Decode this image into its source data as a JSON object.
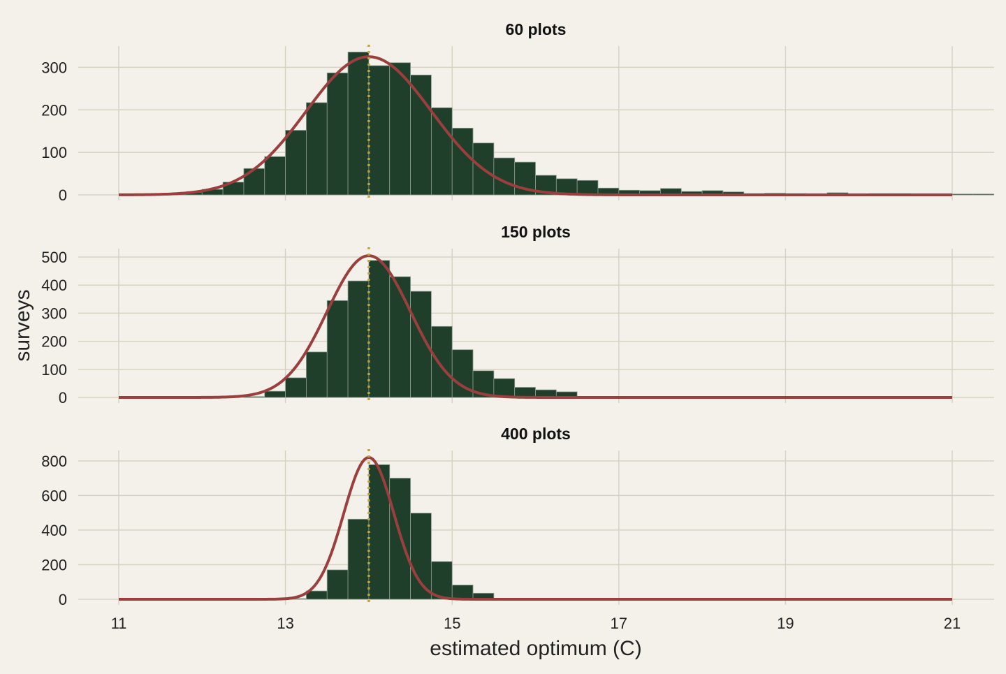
{
  "chart_data": {
    "type": "bar",
    "xlabel": "estimated optimum (C)",
    "ylabel": "surveys",
    "xlim": [
      10.5,
      21.5
    ],
    "xticks": [
      11,
      13,
      15,
      17,
      19,
      21
    ],
    "grid": true,
    "true_value_line": 14,
    "bin_width": 0.25,
    "colors": {
      "background": "#f3f1ea",
      "bars": "#1f3f2a",
      "bar_edge": "#8c9c8f",
      "curve": "#9b3e3e",
      "reference_line": "#c2a33c",
      "grid": "#d6d3c4",
      "text": "#222222"
    },
    "panels": [
      {
        "title": "60 plots",
        "ylim": [
          0,
          350
        ],
        "yticks": [
          0,
          100,
          200,
          300
        ],
        "bins": [
          {
            "x": 11.5,
            "count": 3
          },
          {
            "x": 11.75,
            "count": 6
          },
          {
            "x": 12.0,
            "count": 13
          },
          {
            "x": 12.25,
            "count": 30
          },
          {
            "x": 12.5,
            "count": 62
          },
          {
            "x": 12.75,
            "count": 90
          },
          {
            "x": 13.0,
            "count": 152
          },
          {
            "x": 13.25,
            "count": 217
          },
          {
            "x": 13.5,
            "count": 287
          },
          {
            "x": 13.75,
            "count": 336
          },
          {
            "x": 14.0,
            "count": 304
          },
          {
            "x": 14.25,
            "count": 311
          },
          {
            "x": 14.5,
            "count": 282
          },
          {
            "x": 14.75,
            "count": 205
          },
          {
            "x": 15.0,
            "count": 157
          },
          {
            "x": 15.25,
            "count": 122
          },
          {
            "x": 15.5,
            "count": 87
          },
          {
            "x": 15.75,
            "count": 77
          },
          {
            "x": 16.0,
            "count": 46
          },
          {
            "x": 16.25,
            "count": 38
          },
          {
            "x": 16.5,
            "count": 34
          },
          {
            "x": 16.75,
            "count": 16
          },
          {
            "x": 17.0,
            "count": 11
          },
          {
            "x": 17.25,
            "count": 10
          },
          {
            "x": 17.5,
            "count": 15
          },
          {
            "x": 17.75,
            "count": 8
          },
          {
            "x": 18.0,
            "count": 10
          },
          {
            "x": 18.25,
            "count": 7
          },
          {
            "x": 18.5,
            "count": 3
          },
          {
            "x": 18.75,
            "count": 4
          },
          {
            "x": 19.0,
            "count": 3
          },
          {
            "x": 19.25,
            "count": 2
          },
          {
            "x": 19.5,
            "count": 5
          },
          {
            "x": 19.75,
            "count": 2
          },
          {
            "x": 20.0,
            "count": 3
          },
          {
            "x": 20.25,
            "count": 3
          },
          {
            "x": 20.5,
            "count": 2
          },
          {
            "x": 20.75,
            "count": 2
          },
          {
            "x": 21.0,
            "count": 2
          },
          {
            "x": 21.25,
            "count": 2
          }
        ],
        "curve": {
          "mean": 14.0,
          "sd": 0.75,
          "peak": 325
        }
      },
      {
        "title": "150 plots",
        "ylim": [
          0,
          530
        ],
        "yticks": [
          0,
          100,
          200,
          300,
          400,
          500
        ],
        "bins": [
          {
            "x": 12.5,
            "count": 3
          },
          {
            "x": 12.75,
            "count": 22
          },
          {
            "x": 13.0,
            "count": 70
          },
          {
            "x": 13.25,
            "count": 162
          },
          {
            "x": 13.5,
            "count": 345
          },
          {
            "x": 13.75,
            "count": 415
          },
          {
            "x": 14.0,
            "count": 488
          },
          {
            "x": 14.25,
            "count": 430
          },
          {
            "x": 14.5,
            "count": 378
          },
          {
            "x": 14.75,
            "count": 253
          },
          {
            "x": 15.0,
            "count": 170
          },
          {
            "x": 15.25,
            "count": 95
          },
          {
            "x": 15.5,
            "count": 67
          },
          {
            "x": 15.75,
            "count": 36
          },
          {
            "x": 16.0,
            "count": 27
          },
          {
            "x": 16.25,
            "count": 20
          }
        ],
        "curve": {
          "mean": 14.0,
          "sd": 0.5,
          "peak": 505
        }
      },
      {
        "title": "400 plots",
        "ylim": [
          0,
          860
        ],
        "yticks": [
          0,
          200,
          400,
          600,
          800
        ],
        "bins": [
          {
            "x": 13.0,
            "count": 4
          },
          {
            "x": 13.25,
            "count": 48
          },
          {
            "x": 13.5,
            "count": 170
          },
          {
            "x": 13.75,
            "count": 463
          },
          {
            "x": 14.0,
            "count": 778
          },
          {
            "x": 14.25,
            "count": 700
          },
          {
            "x": 14.5,
            "count": 498
          },
          {
            "x": 14.75,
            "count": 218
          },
          {
            "x": 15.0,
            "count": 82
          },
          {
            "x": 15.25,
            "count": 35
          }
        ],
        "curve": {
          "mean": 14.0,
          "sd": 0.3,
          "peak": 820
        }
      }
    ]
  }
}
